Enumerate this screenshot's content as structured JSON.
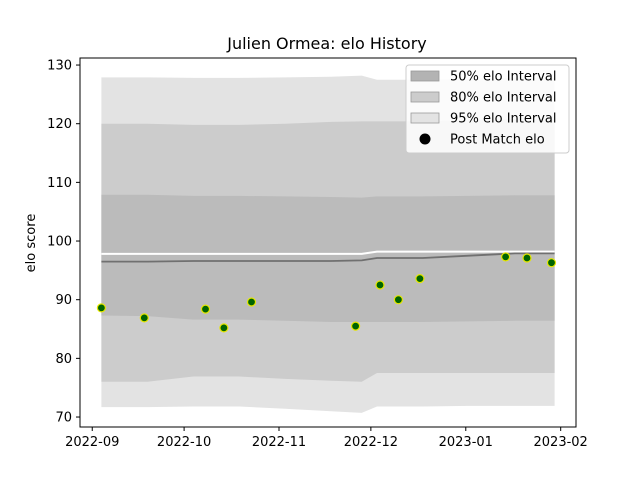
{
  "chart_data": {
    "type": "area",
    "title": "Julien Ormea: elo History",
    "xlabel": "",
    "ylabel": "elo score",
    "ylim": [
      68.3,
      131.2
    ],
    "xlim": [
      "2022-08-28",
      "2023-02-06"
    ],
    "grid": false,
    "legend_placement": "top-right",
    "x_ticks": [
      "2022-09",
      "2022-10",
      "2022-11",
      "2022-12",
      "2023-01",
      "2023-02"
    ],
    "y_ticks": [
      70,
      80,
      90,
      100,
      110,
      120,
      130
    ],
    "legend": [
      {
        "label": "50% elo Interval",
        "kind": "band",
        "color": "#b3b3b3"
      },
      {
        "label": "80% elo Interval",
        "kind": "band",
        "color": "#cccccc"
      },
      {
        "label": "95% elo Interval",
        "kind": "band",
        "color": "#e3e3e3"
      },
      {
        "label": "Post Match elo",
        "kind": "marker",
        "color": "#000000"
      }
    ],
    "band_x": [
      "2022-09-04",
      "2022-09-19",
      "2022-10-04",
      "2022-10-19",
      "2022-11-03",
      "2022-11-18",
      "2022-11-28",
      "2022-12-03",
      "2022-12-18",
      "2023-01-02",
      "2023-01-17",
      "2023-01-30"
    ],
    "bands": [
      {
        "name": "95% elo Interval",
        "color": "#e3e3e3",
        "lower": [
          71.7,
          71.7,
          71.8,
          71.8,
          71.4,
          71.0,
          70.7,
          71.8,
          71.8,
          71.9,
          71.9,
          71.9
        ],
        "upper": [
          127.9,
          127.9,
          127.8,
          127.8,
          127.9,
          128.0,
          128.2,
          127.5,
          127.5,
          127.6,
          127.8,
          127.8
        ]
      },
      {
        "name": "80% elo Interval",
        "color": "#cccccc",
        "lower": [
          76.0,
          76.0,
          76.9,
          76.9,
          76.5,
          76.2,
          76.0,
          77.5,
          77.5,
          77.5,
          77.5,
          77.5
        ],
        "upper": [
          120.0,
          120.0,
          119.8,
          119.8,
          120.0,
          120.3,
          120.4,
          120.4,
          120.4,
          120.6,
          120.8,
          120.8
        ]
      },
      {
        "name": "50% elo Interval",
        "color": "#bbbbbb",
        "lower": [
          87.3,
          87.2,
          86.6,
          86.6,
          86.4,
          86.2,
          86.2,
          86.2,
          86.2,
          86.3,
          86.4,
          86.4
        ],
        "upper": [
          107.9,
          107.9,
          107.7,
          107.7,
          107.6,
          107.5,
          107.4,
          107.6,
          107.6,
          107.7,
          107.8,
          107.8
        ]
      }
    ],
    "mean_line": {
      "x": [
        "2022-09-04",
        "2022-09-19",
        "2022-10-04",
        "2022-10-19",
        "2022-11-03",
        "2022-11-18",
        "2022-11-28",
        "2022-12-03",
        "2022-12-18",
        "2023-01-02",
        "2023-01-17",
        "2023-01-30"
      ],
      "y": [
        96.5,
        96.5,
        96.6,
        96.6,
        96.6,
        96.6,
        96.7,
        97.1,
        97.1,
        97.5,
        97.9,
        97.9
      ],
      "color": "#707070"
    },
    "highlight_line": {
      "x": [
        "2022-09-04",
        "2022-11-28",
        "2022-12-03",
        "2023-01-30"
      ],
      "y": [
        97.8,
        97.8,
        98.2,
        98.2
      ],
      "color": "#ffffff"
    },
    "points": {
      "name": "Post Match elo",
      "fill": "#006400",
      "edge": "#e6e600",
      "x": [
        "2022-09-04",
        "2022-09-18",
        "2022-10-08",
        "2022-10-14",
        "2022-10-23",
        "2022-11-26",
        "2022-12-04",
        "2022-12-10",
        "2022-12-17",
        "2023-01-14",
        "2023-01-21",
        "2023-01-29"
      ],
      "y": [
        88.6,
        86.9,
        88.4,
        85.2,
        89.6,
        85.5,
        92.5,
        90.0,
        93.6,
        97.3,
        97.1,
        96.3
      ]
    }
  }
}
